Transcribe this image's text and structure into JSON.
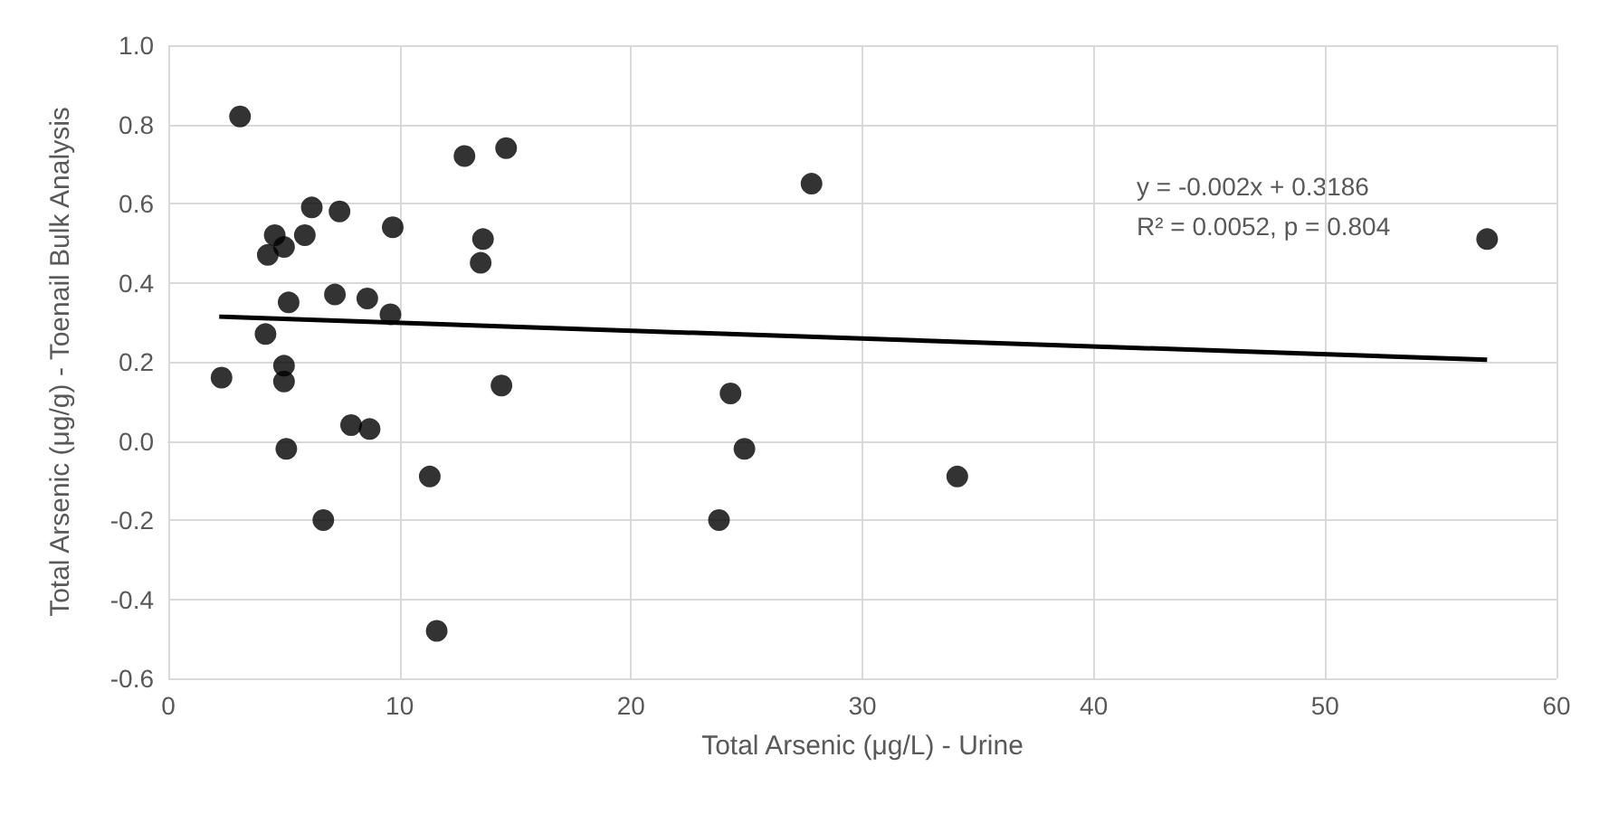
{
  "chart_data": {
    "type": "scatter",
    "xlabel": "Total Arsenic (μg/L) - Urine",
    "ylabel": "Total Arsenic (μg/g) - Toenail Bulk Analysis",
    "annotations": [
      "y = -0.002x + 0.3186",
      "R² = 0.0052, p = 0.804"
    ],
    "xlim": [
      0,
      60
    ],
    "xticks": [
      0,
      10,
      20,
      30,
      40,
      50,
      60
    ],
    "ylim": [
      -0.6,
      1.0
    ],
    "yticks": [
      {
        "value": -0.6,
        "label": "-0.6"
      },
      {
        "value": -0.4,
        "label": "-0.4"
      },
      {
        "value": -0.2,
        "label": "-0.2"
      },
      {
        "value": 0,
        "label": "0.0"
      },
      {
        "value": 0.2,
        "label": "0.2"
      },
      {
        "value": 0.4,
        "label": "0.4"
      },
      {
        "value": 0.6,
        "label": "0.6"
      },
      {
        "value": 0.8,
        "label": "0.8"
      },
      {
        "value": 1.0,
        "label": "1.0"
      }
    ],
    "grid": true,
    "series": [
      {
        "marker": "circle",
        "color": "#000000",
        "x": [
          3.1,
          12.8,
          14.6,
          27.8,
          57.0,
          6.2,
          7.4,
          4.6,
          5.9,
          9.7,
          13.6,
          4.3,
          5.0,
          13.5,
          5.2,
          7.2,
          8.6,
          9.6,
          4.2,
          2.3,
          5.0,
          5.0,
          14.4,
          7.9,
          8.7,
          5.1,
          11.3,
          11.6,
          23.8,
          24.9,
          24.3,
          34.1,
          6.7
        ],
        "values": [
          0.82,
          0.72,
          0.74,
          0.65,
          0.51,
          0.59,
          0.58,
          0.52,
          0.52,
          0.54,
          0.51,
          0.47,
          0.49,
          0.45,
          0.35,
          0.37,
          0.36,
          0.32,
          0.27,
          0.16,
          0.19,
          0.15,
          0.14,
          0.04,
          0.03,
          -0.02,
          -0.09,
          -0.48,
          -0.2,
          -0.02,
          0.12,
          -0.09,
          -0.2
        ]
      },
      {
        "type": "line",
        "marker": "none",
        "color": "#000000",
        "x": [
          2.2,
          57.0
        ],
        "values": [
          0.314,
          0.205
        ]
      }
    ]
  }
}
